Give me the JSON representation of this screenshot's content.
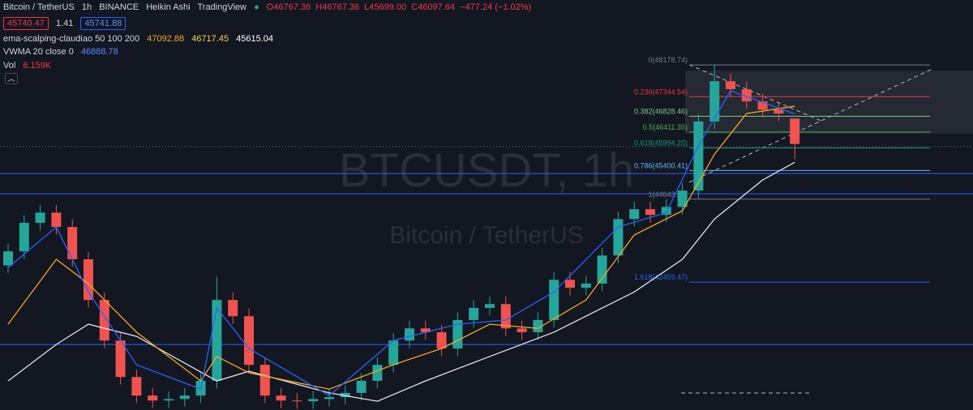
{
  "header": {
    "symbol": "Bitcoin / TetherUS",
    "interval": "1h",
    "exchange": "BINANCE",
    "style": "Heikin Ashi",
    "source": "TradingView",
    "open": "O46767.36",
    "high": "H46767.36",
    "low": "L45699.00",
    "close": "C46097.64",
    "change": "−477.24 (−1.02%)"
  },
  "quote": {
    "sell": "45740.47",
    "spread": "1.41",
    "buy": "45741.88"
  },
  "indicators": [
    {
      "name": "ema-scalping-claudiao 50 100 200",
      "values": [
        "47092.88",
        "46717.45",
        "45615.04"
      ]
    },
    {
      "name": "VWMA 20 close 0",
      "values": [
        "46888.78"
      ]
    },
    {
      "name": "Vol",
      "values": [
        "6.159K"
      ]
    }
  ],
  "watermark": {
    "main": "BTCUSDT, 1h",
    "sub": "Bitcoin / TetherUS"
  },
  "chart_data": {
    "type": "candlestick",
    "ylim": [
      39090,
      49890
    ],
    "open": [
      42900,
      43270,
      44020,
      44290,
      43910,
      43060,
      41990,
      40920,
      39960,
      39470,
      39340,
      39380,
      39470,
      39860,
      41990,
      41560,
      40280,
      39470,
      39340,
      39320,
      39380,
      39430,
      39540,
      39860,
      40280,
      40920,
      41240,
      41140,
      40710,
      41460,
      41780,
      41880,
      41240,
      41140,
      41460,
      42520,
      42310,
      42420,
      43160,
      44120,
      44380,
      44230,
      44440,
      44870,
      46690,
      47750,
      47540,
      47220,
      47000,
      46767.36
    ],
    "high": [
      43470,
      44220,
      44490,
      44490,
      44110,
      43260,
      42190,
      41120,
      40160,
      39670,
      39580,
      39670,
      40060,
      42600,
      42190,
      41760,
      40480,
      39670,
      39540,
      39580,
      39630,
      39740,
      40060,
      40480,
      41120,
      41440,
      41440,
      41340,
      41660,
      41980,
      42080,
      42080,
      41440,
      41660,
      42720,
      42720,
      42620,
      43360,
      44320,
      44580,
      44580,
      44640,
      45070,
      46890,
      48178.74,
      47950,
      47740,
      47420,
      47200,
      46767.36
    ],
    "low": [
      42700,
      43070,
      43820,
      43710,
      42860,
      41790,
      40720,
      39760,
      39270,
      39140,
      39140,
      39180,
      39270,
      39660,
      41360,
      40080,
      39270,
      39140,
      39120,
      39120,
      39180,
      39230,
      39340,
      39660,
      40080,
      40720,
      40940,
      40510,
      40510,
      41260,
      41580,
      41040,
      40940,
      40940,
      41260,
      42110,
      42110,
      42220,
      42960,
      43920,
      44030,
      44030,
      44240,
      44670,
      46490,
      47340,
      47020,
      46800,
      46700,
      45699
    ],
    "close": [
      43270,
      44020,
      44290,
      43910,
      43060,
      41990,
      40920,
      39960,
      39470,
      39340,
      39380,
      39470,
      39860,
      41990,
      41560,
      40280,
      39470,
      39340,
      39320,
      39380,
      39430,
      39540,
      39860,
      40280,
      40920,
      41240,
      41140,
      40710,
      41460,
      41780,
      41880,
      41240,
      41140,
      41460,
      42520,
      42310,
      42420,
      43160,
      44120,
      44380,
      44230,
      44440,
      44870,
      46690,
      47750,
      47540,
      47220,
      47000,
      46900,
      46097.64
    ],
    "up_color": "#26a69a",
    "down_color": "#ef5350",
    "lines": [
      {
        "color": "#e0e3eb",
        "x": [
          0,
          3,
          5,
          8,
          13,
          15,
          20,
          23,
          26,
          30,
          34,
          39,
          42,
          44,
          47,
          49
        ],
        "values": [
          39856,
          40816,
          41350,
          41030,
          39856,
          40110,
          39540,
          39320,
          39856,
          40500,
          41140,
          42200,
          43060,
          44120,
          45150,
          45615.04
        ]
      },
      {
        "color": "#f5a623",
        "x": [
          0,
          3,
          5,
          8,
          12,
          13,
          15,
          20,
          24,
          27,
          30,
          33,
          36,
          39,
          42,
          44,
          46,
          49
        ],
        "values": [
          41350,
          43060,
          42416,
          41140,
          39856,
          40500,
          40070,
          39640,
          40282,
          40710,
          41350,
          41240,
          41990,
          43700,
          44338,
          45830,
          46900,
          47092.88
        ]
      },
      {
        "color": "#2962ff",
        "x": [
          0,
          3,
          5,
          8,
          12,
          13,
          15,
          20,
          24,
          28,
          31,
          34,
          38,
          41,
          43,
          45,
          49
        ],
        "values": [
          42840,
          43910,
          42200,
          40280,
          39640,
          41780,
          40710,
          39470,
          40920,
          41350,
          41460,
          42200,
          43910,
          44290,
          46045,
          47500,
          46888.78
        ]
      }
    ],
    "hlines": [
      45319,
      44786,
      40817
    ],
    "hline_color": "#2962ff",
    "fib": [
      {
        "value": 48178.74,
        "label": "0(48178.74)",
        "color": "#787b86"
      },
      {
        "value": 47344.54,
        "label": "0.236(47344.54)",
        "color": "#f23645"
      },
      {
        "value": 46828.46,
        "label": "0.382(46828.46)",
        "color": "#81c784"
      },
      {
        "value": 46411.35,
        "label": "0.5(46411.35)",
        "color": "#4caf50"
      },
      {
        "value": 45994.25,
        "label": "0.618(45994.25)",
        "color": "#089981"
      },
      {
        "value": 45400.41,
        "label": "0.786(45400.41)",
        "color": "#64b5f6"
      },
      {
        "value": 44643.96,
        "label": "1(44643.96)",
        "color": "#787b86"
      },
      {
        "value": 42459.47,
        "label": "1.618(42459.47)",
        "color": "#2962ff"
      }
    ]
  }
}
